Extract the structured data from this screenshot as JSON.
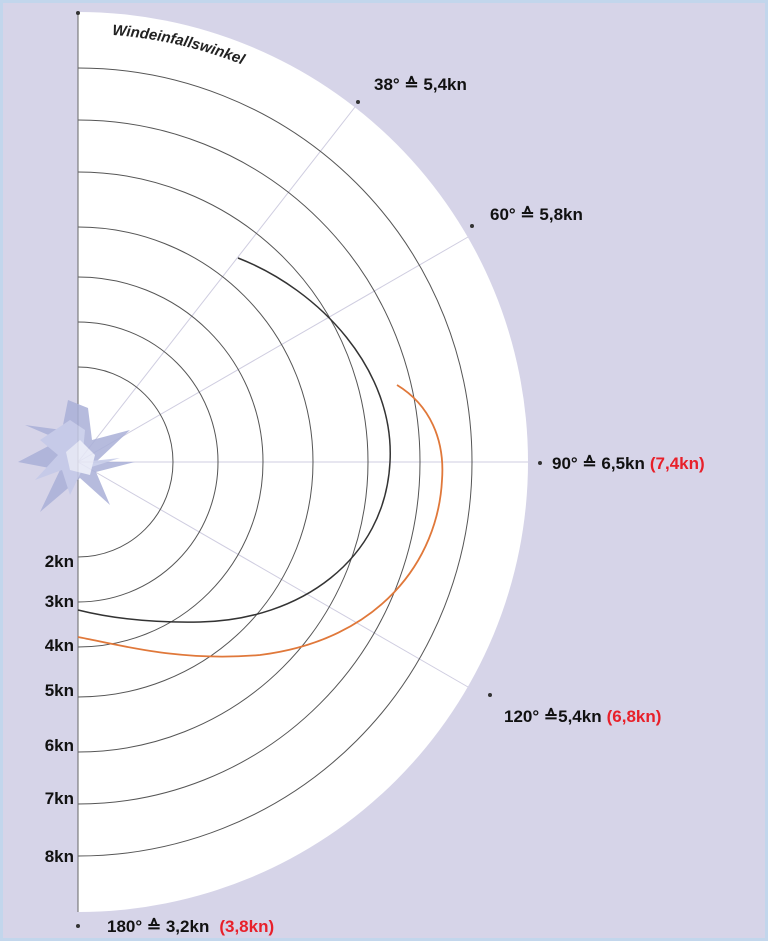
{
  "title": "Windeinfallswinkel",
  "angle_labels": [
    {
      "text": "38° ≙ 5,4kn"
    },
    {
      "text": "60° ≙ 5,8kn"
    },
    {
      "text": "90° ≙ 6,5kn",
      "extra": "(7,4kn)"
    },
    {
      "text": "120° ≙5,4kn",
      "extra": "(6,8kn)"
    },
    {
      "text": "180° ≙ 3,2kn",
      "extra": "(3,8kn)"
    }
  ],
  "ring_labels": [
    "2kn",
    "3kn",
    "4kn",
    "5kn",
    "6kn",
    "7kn",
    "8kn"
  ]
}
